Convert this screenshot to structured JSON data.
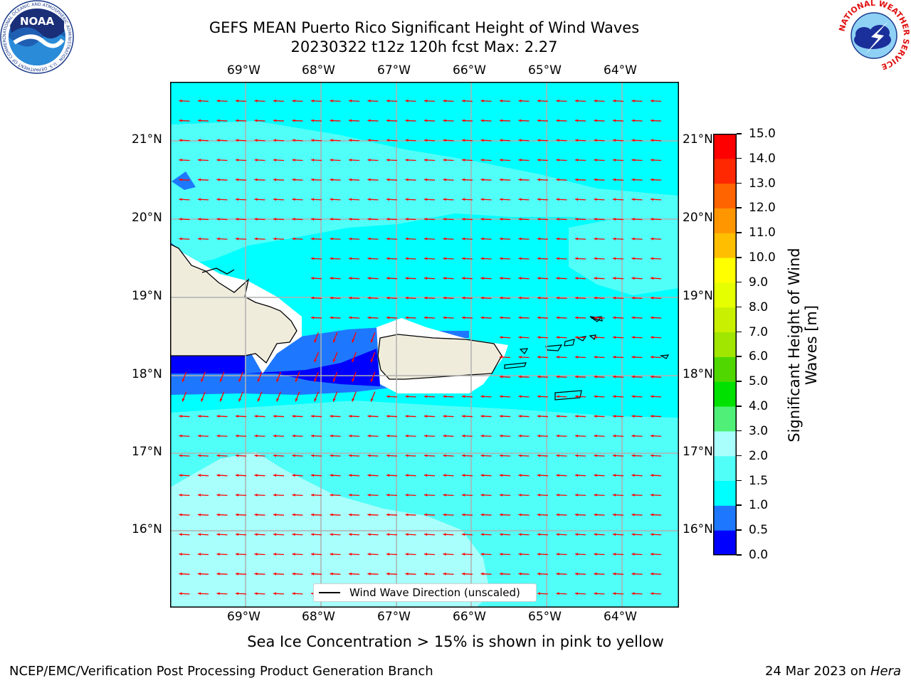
{
  "header": {
    "title_line1": "GEFS MEAN Puerto Rico Significant Height of Wind Waves",
    "title_line2": "20230322 t12z 120h fcst   Max: 2.27"
  },
  "logos": {
    "left": "NOAA",
    "right": "NATIONAL WEATHER SERVICE",
    "noaa_ring_text": "NATIONAL OCEANIC AND ATMOSPHERIC ADMINISTRATION · U.S. DEPARTMENT OF COMMERCE"
  },
  "map": {
    "lon_ticks": [
      "69°W",
      "68°W",
      "67°W",
      "66°W",
      "65°W",
      "64°W"
    ],
    "lat_ticks": [
      "21°N",
      "20°N",
      "19°N",
      "18°N",
      "17°N",
      "16°N"
    ],
    "lon_range": [
      -70.0,
      -63.25
    ],
    "lat_range": [
      15.0,
      21.75
    ],
    "grid": true,
    "vector_color": "#ff0000",
    "vector_direction": "westward"
  },
  "colorbar": {
    "title": "Significant Height of Wind Waves [m]",
    "levels": [
      0.0,
      0.5,
      1.0,
      1.5,
      2.0,
      3.0,
      4.0,
      5.0,
      6.0,
      7.0,
      8.0,
      9.0,
      10.0,
      11.0,
      12.0,
      13.0,
      14.0,
      15.0
    ],
    "labels": [
      "0.0",
      "0.5",
      "1.0",
      "1.5",
      "2.0",
      "3.0",
      "4.0",
      "5.0",
      "6.0",
      "7.0",
      "8.0",
      "9.0",
      "10.0",
      "11.0",
      "12.0",
      "13.0",
      "14.0",
      "15.0"
    ],
    "colors": [
      "#0000ff",
      "#1e78ff",
      "#00ffff",
      "#50fff8",
      "#a8fffb",
      "#50f078",
      "#00e100",
      "#50d700",
      "#a0e600",
      "#c8f000",
      "#e6ff00",
      "#ffff00",
      "#ffbe00",
      "#ff9600",
      "#ff6400",
      "#ff2800",
      "#ff0000"
    ]
  },
  "legend": {
    "label": "Wind Wave Direction (unscaled)"
  },
  "note": "Sea Ice Concentration > 15% is shown in pink to yellow",
  "footer": {
    "left": "NCEP/EMC/Verification Post Processing Product Generation Branch",
    "right_date": "24 Mar 2023 on ",
    "right_host": "Hera"
  },
  "field_colors": {
    "land": "#f0ecdc",
    "coast": "#000000",
    "grid": "#b0b0b0"
  }
}
